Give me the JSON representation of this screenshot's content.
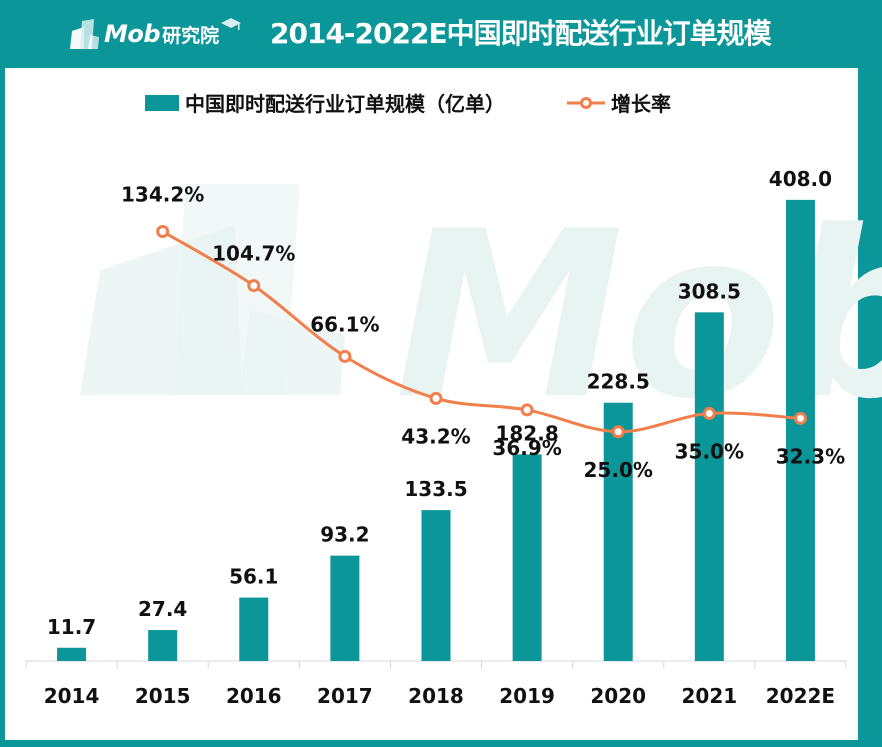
{
  "header": {
    "brand": "Mob",
    "brand_cn": "研究院",
    "title": "2014-2022E中国即时配送行业订单规模"
  },
  "colors": {
    "accent": "#0b9699",
    "line": "#f07f4c",
    "watermark": "#e8f4f2"
  },
  "watermark": "Mob",
  "chart_data": {
    "type": "bar+line",
    "title": "2014-2022E中国即时配送行业订单规模",
    "categories": [
      "2014",
      "2015",
      "2016",
      "2017",
      "2018",
      "2019",
      "2020",
      "2021",
      "2022E"
    ],
    "series": [
      {
        "name": "中国即时配送行业订单规模（亿单）",
        "type": "bar",
        "values": [
          11.7,
          27.4,
          56.1,
          93.2,
          133.5,
          182.8,
          228.5,
          308.5,
          408.0
        ],
        "labels": [
          "11.7",
          "27.4",
          "56.1",
          "93.2",
          "133.5",
          "182.8",
          "228.5",
          "308.5",
          "408.0"
        ]
      },
      {
        "name": "增长率",
        "type": "line",
        "values": [
          null,
          134.2,
          104.7,
          66.1,
          43.2,
          36.9,
          25.0,
          35.0,
          32.3
        ],
        "labels": [
          "",
          "134.2%",
          "104.7%",
          "66.1%",
          "43.2%",
          "36.9%",
          "25.0%",
          "35.0%",
          "32.3%"
        ]
      }
    ],
    "ylim_bar": [
      0,
      430
    ],
    "ylim_line": [
      -100,
      165
    ],
    "legend_position": "top",
    "grid": false
  }
}
